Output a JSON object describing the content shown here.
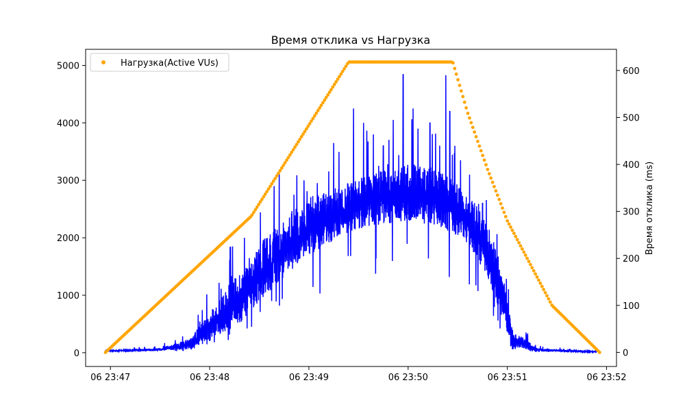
{
  "chart_data": {
    "type": "line",
    "title": "Время отклика vs Нагрузка",
    "xlabel": "",
    "ylabel_left": "",
    "ylabel_right": "Время отклика (ms)",
    "x_tick_labels": [
      "06 23:47",
      "06 23:48",
      "06 23:49",
      "06 23:50",
      "06 23:51",
      "06 23:52"
    ],
    "x_ticks_minutes": [
      47,
      48,
      49,
      50,
      51,
      52
    ],
    "xlim_minutes": [
      46.75,
      52.1
    ],
    "left_axis": {
      "ylim": [
        -240,
        5280
      ],
      "ticks": [
        0,
        1000,
        2000,
        3000,
        4000,
        5000
      ]
    },
    "right_axis": {
      "ylim": [
        -30,
        645
      ],
      "ticks": [
        0,
        100,
        200,
        300,
        400,
        500,
        600
      ]
    },
    "grid": false,
    "legend": {
      "placement": "top-left",
      "entries": [
        "Нагрузка(Active VUs)"
      ]
    },
    "series": [
      {
        "name": "",
        "kind": "line",
        "color": "#0000ff",
        "axis": "left",
        "note_x_unit": "minutes after 23:00",
        "envelope_points": [
          {
            "x": 46.95,
            "base": 20,
            "peak": 40
          },
          {
            "x": 47.5,
            "base": 30,
            "peak": 80
          },
          {
            "x": 47.8,
            "base": 60,
            "peak": 250
          },
          {
            "x": 48.0,
            "base": 200,
            "peak": 700
          },
          {
            "x": 48.3,
            "base": 500,
            "peak": 1400
          },
          {
            "x": 48.5,
            "base": 900,
            "peak": 1900
          },
          {
            "x": 48.8,
            "base": 1400,
            "peak": 2400
          },
          {
            "x": 49.0,
            "base": 1700,
            "peak": 2700
          },
          {
            "x": 49.3,
            "base": 2000,
            "peak": 2900
          },
          {
            "x": 49.6,
            "base": 2200,
            "peak": 3100
          },
          {
            "x": 50.0,
            "base": 2300,
            "peak": 3300
          },
          {
            "x": 50.3,
            "base": 2200,
            "peak": 3200
          },
          {
            "x": 50.6,
            "base": 1900,
            "peak": 2800
          },
          {
            "x": 50.8,
            "base": 1300,
            "peak": 2300
          },
          {
            "x": 50.95,
            "base": 600,
            "peak": 1400
          },
          {
            "x": 51.05,
            "base": 100,
            "peak": 400
          },
          {
            "x": 51.3,
            "base": 20,
            "peak": 80
          },
          {
            "x": 51.9,
            "base": 10,
            "peak": 20
          }
        ],
        "spikes": [
          {
            "x": 49.95,
            "y": 4840
          },
          {
            "x": 50.05,
            "y": 4250
          },
          {
            "x": 49.45,
            "y": 4250
          },
          {
            "x": 50.38,
            "y": 4830
          },
          {
            "x": 49.85,
            "y": 4050
          },
          {
            "x": 49.55,
            "y": 4000
          },
          {
            "x": 50.42,
            "y": 4200
          },
          {
            "x": 50.1,
            "y": 3900
          },
          {
            "x": 49.25,
            "y": 3650
          },
          {
            "x": 50.47,
            "y": 3600
          },
          {
            "x": 48.95,
            "y": 3000
          },
          {
            "x": 48.85,
            "y": 2750
          },
          {
            "x": 48.65,
            "y": 2900
          },
          {
            "x": 48.35,
            "y": 2000
          },
          {
            "x": 50.62,
            "y": 3100
          },
          {
            "x": 50.75,
            "y": 2600
          },
          {
            "x": 49.65,
            "y": 3800
          },
          {
            "x": 49.75,
            "y": 3600
          },
          {
            "x": 50.22,
            "y": 4000
          }
        ]
      },
      {
        "name": "Нагрузка(Active VUs)",
        "kind": "scatter",
        "color": "#ffa500",
        "axis": "right",
        "note_x_unit": "minutes after 23:00",
        "points": [
          {
            "x": 46.95,
            "y": 0
          },
          {
            "x": 48.42,
            "y": 290
          },
          {
            "x": 48.6,
            "y": 350
          },
          {
            "x": 49.4,
            "y": 618
          },
          {
            "x": 50.45,
            "y": 618
          },
          {
            "x": 50.6,
            "y": 510
          },
          {
            "x": 50.8,
            "y": 390
          },
          {
            "x": 51.0,
            "y": 280
          },
          {
            "x": 51.45,
            "y": 100
          },
          {
            "x": 51.93,
            "y": 0
          }
        ]
      }
    ]
  }
}
